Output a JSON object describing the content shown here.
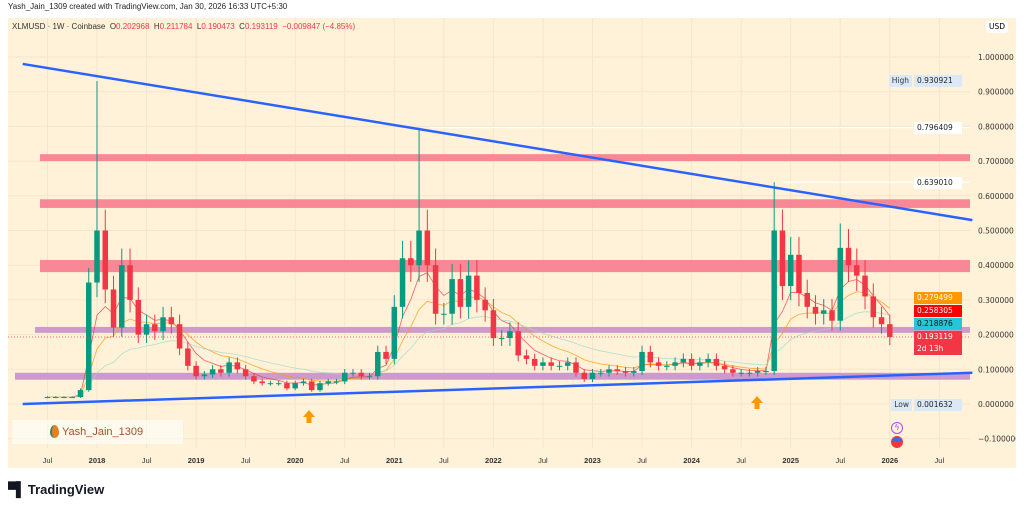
{
  "credit": "Yash_Jain_1309 created with TradingView.com, Jan 30, 2026 16:33 UTC+5:30",
  "legend": {
    "symbol": "XLMUSD · 1W · Coinbase",
    "o_label": "O",
    "o": "0.202968",
    "h_label": "H",
    "h": "0.211784",
    "l_label": "L",
    "l": "0.190473",
    "c_label": "C",
    "c": "0.193119",
    "change": "−0.009847 (−4.85%)"
  },
  "watermark": "Yash_Jain_1309",
  "brand": "TradingView",
  "colors": {
    "background": "#fff2d9",
    "up": "#089981",
    "down": "#f23645",
    "trendline": "#2962ff",
    "resistance": "#f7768a",
    "support": "#c58bc9",
    "arrow": "#ff9800"
  },
  "chart_data": {
    "type": "candlestick",
    "currency": "USD",
    "interval": "1W",
    "y_ticks": [
      "1.000000",
      "0.900000",
      "0.800000",
      "0.700000",
      "0.600000",
      "0.500000",
      "0.400000",
      "0.300000",
      "0.200000",
      "0.100000",
      "0.000000",
      "−0.100000"
    ],
    "ylim": [
      -0.1,
      1.05
    ],
    "x_ticks": [
      "Jul",
      "2018",
      "Jul",
      "2019",
      "Jul",
      "2020",
      "Jul",
      "2021",
      "Jul",
      "2022",
      "Jul",
      "2023",
      "Jul",
      "2024",
      "Jul",
      "2025",
      "Jul",
      "2026",
      "Jul"
    ],
    "start": "2017-07",
    "monthly_close": [
      0.02,
      0.02,
      0.02,
      0.02,
      0.04,
      0.35,
      0.5,
      0.33,
      0.22,
      0.4,
      0.3,
      0.2,
      0.23,
      0.21,
      0.25,
      0.23,
      0.16,
      0.11,
      0.08,
      0.085,
      0.1,
      0.09,
      0.12,
      0.1,
      0.08,
      0.065,
      0.06,
      0.06,
      0.06,
      0.045,
      0.06,
      0.065,
      0.04,
      0.06,
      0.065,
      0.065,
      0.09,
      0.09,
      0.08,
      0.08,
      0.15,
      0.13,
      0.28,
      0.42,
      0.4,
      0.5,
      0.4,
      0.26,
      0.26,
      0.36,
      0.28,
      0.37,
      0.3,
      0.27,
      0.19,
      0.19,
      0.21,
      0.14,
      0.13,
      0.11,
      0.12,
      0.11,
      0.11,
      0.12,
      0.09,
      0.072,
      0.09,
      0.09,
      0.1,
      0.095,
      0.09,
      0.095,
      0.15,
      0.12,
      0.11,
      0.11,
      0.12,
      0.13,
      0.11,
      0.12,
      0.13,
      0.11,
      0.1,
      0.09,
      0.09,
      0.09,
      0.095,
      0.095,
      0.5,
      0.34,
      0.43,
      0.32,
      0.28,
      0.26,
      0.27,
      0.24,
      0.45,
      0.4,
      0.37,
      0.31,
      0.25,
      0.23,
      0.193
    ],
    "notable_highs": {
      "2018-01": 0.930921,
      "2021-04": 0.796409,
      "2024-11": 0.63901,
      "2025-07": 0.52
    },
    "resistance_zones": [
      [
        0.7,
        0.72
      ],
      [
        0.565,
        0.59
      ],
      [
        0.38,
        0.415
      ]
    ],
    "support_zones": [
      [
        0.205,
        0.222
      ],
      [
        0.07,
        0.09
      ]
    ],
    "trendlines": [
      {
        "from": [
          "2017-04",
          0.98
        ],
        "to": [
          "2026-11",
          0.53
        ]
      },
      {
        "from": [
          "2017-04",
          0.0
        ],
        "to": [
          "2026-11",
          0.09
        ]
      }
    ],
    "price_labels": {
      "high_label": "High",
      "high": "0.930921",
      "low_label": "Low",
      "low": "0.001632",
      "level1": "0.796409",
      "level2": "0.639010",
      "ma1": "0.279499",
      "ma2": "0.258305",
      "ma3": "0.218876",
      "last": "0.193119",
      "countdown": "2d 13h"
    }
  }
}
